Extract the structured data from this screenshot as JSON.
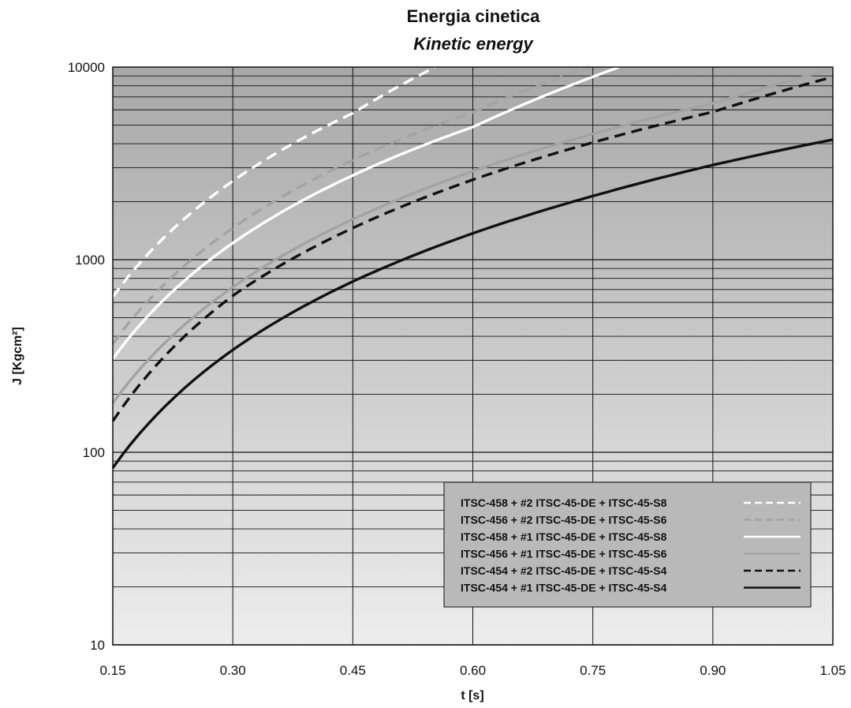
{
  "chart_data": {
    "type": "line",
    "title": "Energia cinetica",
    "subtitle": "Kinetic energy",
    "xlabel": "t [s]",
    "ylabel": "J [Kgcm²]",
    "xlim": [
      0.15,
      1.05
    ],
    "ylim": [
      10,
      10000
    ],
    "yscale": "log",
    "x_ticks": [
      "0.15",
      "0.30",
      "0.45",
      "0.60",
      "0.75",
      "0.90",
      "1.05"
    ],
    "y_ticks": [
      "10",
      "100",
      "1000",
      "10000"
    ],
    "grid": true,
    "legend_position": "bottom-right",
    "background": "gradient-gray",
    "series": [
      {
        "name": "ITSC-458 + #2 ITSC-45-DE + ITSC-45-S8",
        "style": "dashed",
        "color": "#ffffff",
        "x": [
          0.15,
          0.3,
          0.45,
          0.553
        ],
        "y": [
          640,
          2560,
          5760,
          10000
        ]
      },
      {
        "name": "ITSC-456 + #2 ITSC-45-DE + ITSC-45-S6",
        "style": "dashed",
        "color": "#a3a3a3",
        "x": [
          0.15,
          0.3,
          0.45,
          0.6,
          0.745
        ],
        "y": [
          365,
          1460,
          3290,
          5840,
          10000
        ]
      },
      {
        "name": "ITSC-458 + #1 ITSC-45-DE + ITSC-45-S8",
        "style": "solid",
        "color": "#ffffff",
        "x": [
          0.15,
          0.3,
          0.45,
          0.6,
          0.783
        ],
        "y": [
          305,
          1220,
          2740,
          4880,
          10000
        ]
      },
      {
        "name": "ITSC-456 + #1 ITSC-45-DE + ITSC-45-S6",
        "style": "solid",
        "color": "#a3a3a3",
        "x": [
          0.15,
          0.3,
          0.45,
          0.6,
          0.75,
          0.9,
          1.05
        ],
        "y": [
          180,
          720,
          1620,
          2880,
          4500,
          6480,
          9800
        ]
      },
      {
        "name": "ITSC-454 + #2 ITSC-45-DE + ITSC-45-S4",
        "style": "dashed",
        "color": "#111111",
        "x": [
          0.15,
          0.3,
          0.45,
          0.6,
          0.75,
          0.9,
          1.05
        ],
        "y": [
          145,
          650,
          1460,
          2600,
          4060,
          5850,
          8900
        ]
      },
      {
        "name": "ITSC-454 + #1 ITSC-45-DE + ITSC-45-S4",
        "style": "solid",
        "color": "#111111",
        "x": [
          0.15,
          0.3,
          0.45,
          0.6,
          0.75,
          0.9,
          1.05
        ],
        "y": [
          83,
          340,
          770,
          1370,
          2140,
          3100,
          4200
        ]
      }
    ]
  }
}
